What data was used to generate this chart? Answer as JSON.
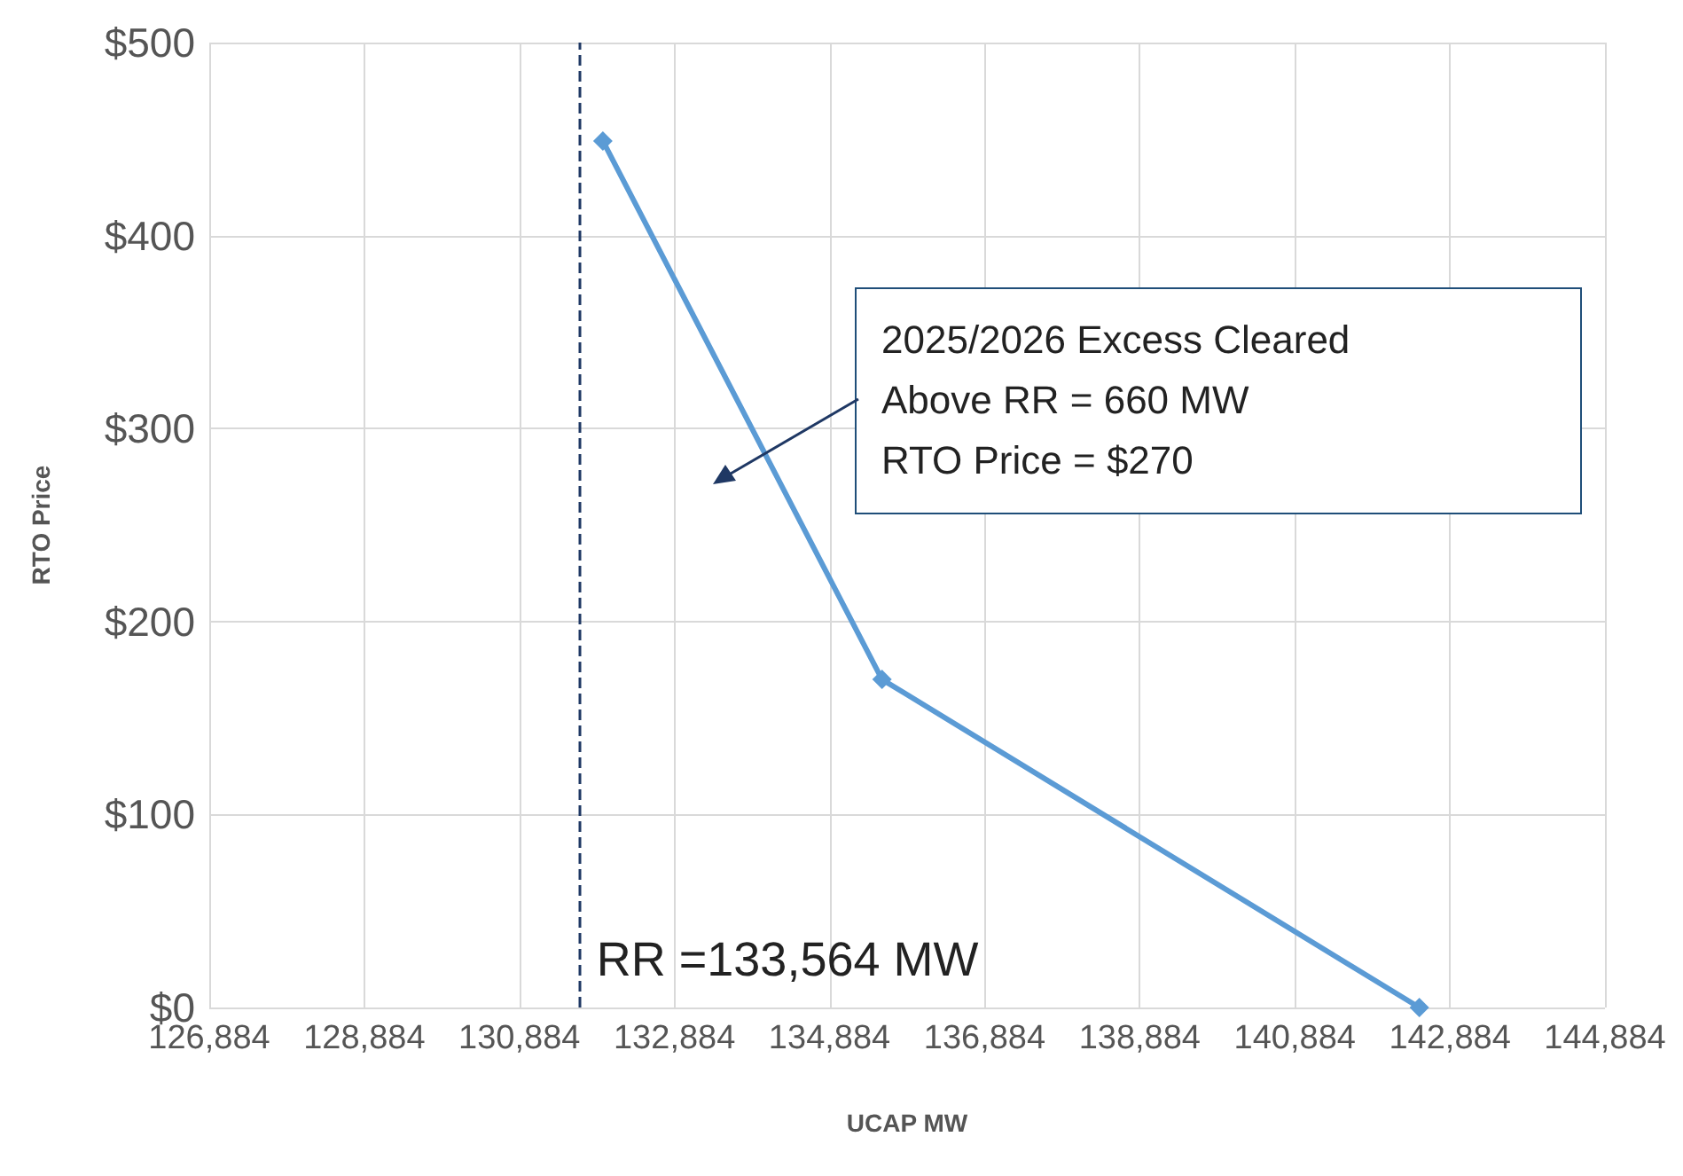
{
  "chart_data": {
    "type": "line",
    "xlabel": "UCAP MW",
    "ylabel": "RTO Price",
    "x": [
      131960,
      135560,
      142490
    ],
    "series": [
      {
        "color": "#5b9bd5",
        "values": [
          449,
          170,
          0
        ]
      }
    ],
    "xlim": [
      126884,
      144884
    ],
    "xticks": [
      {
        "value": 126884,
        "label": "126,884"
      },
      {
        "value": 128884,
        "label": "128,884"
      },
      {
        "value": 130884,
        "label": "130,884"
      },
      {
        "value": 132884,
        "label": "132,884"
      },
      {
        "value": 134884,
        "label": "134,884"
      },
      {
        "value": 136884,
        "label": "136,884"
      },
      {
        "value": 138884,
        "label": "138,884"
      },
      {
        "value": 140884,
        "label": "140,884"
      },
      {
        "value": 142884,
        "label": "142,884"
      },
      {
        "value": 144884,
        "label": "144,884"
      }
    ],
    "ylim": [
      0,
      500
    ],
    "yticks": [
      {
        "value": 0,
        "label": "$0"
      },
      {
        "value": 100,
        "label": "$100"
      },
      {
        "value": 200,
        "label": "$200"
      },
      {
        "value": 300,
        "label": "$300"
      },
      {
        "value": 400,
        "label": "$400"
      },
      {
        "value": 500,
        "label": "$500"
      }
    ],
    "ref_lines": [
      {
        "axis": "x",
        "value": 131650,
        "color": "#1f3864",
        "line_style": "dashed"
      }
    ],
    "annotations": [
      "2025/2026 Excess Cleared\nAbove RR = 660 MW\nRTO Price = $270",
      {
        "text": "RR =133,564 MW",
        "x": 131650,
        "y": 0
      }
    ],
    "grid": true,
    "marker": "diamond",
    "line_style": "solid"
  }
}
